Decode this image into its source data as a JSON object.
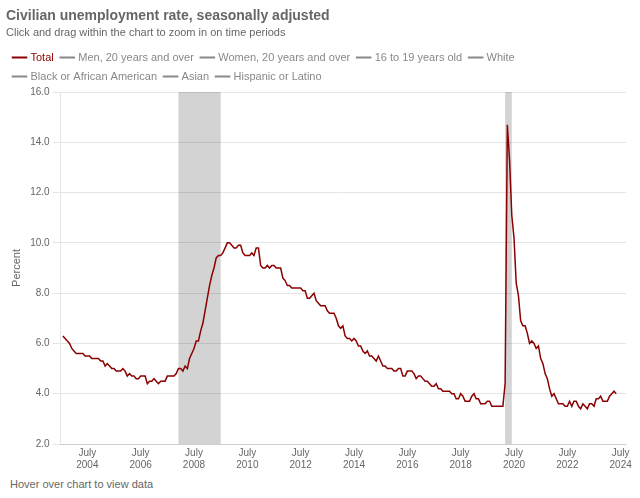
{
  "chart_data": {
    "type": "line",
    "title": "Civilian unemployment rate, seasonally adjusted",
    "subtitle": "Click and drag within the chart to zoom in on time periods",
    "footnote": "Hover over chart to view data",
    "ylabel": "Percent",
    "legend": "top",
    "grid": true,
    "xlim": [
      2003.5,
      2024.7
    ],
    "xticks": [
      {
        "value": 2004.5,
        "label": "July\n2004"
      },
      {
        "value": 2006.5,
        "label": "July\n2006"
      },
      {
        "value": 2008.5,
        "label": "July\n2008"
      },
      {
        "value": 2010.5,
        "label": "July\n2010"
      },
      {
        "value": 2012.5,
        "label": "July\n2012"
      },
      {
        "value": 2014.5,
        "label": "July\n2014"
      },
      {
        "value": 2016.5,
        "label": "July\n2016"
      },
      {
        "value": 2018.5,
        "label": "July\n2018"
      },
      {
        "value": 2020.5,
        "label": "July\n2020"
      },
      {
        "value": 2022.5,
        "label": "July\n2022"
      },
      {
        "value": 2024.5,
        "label": "July\n2024"
      }
    ],
    "ylim": [
      2.0,
      16.0
    ],
    "yticks": [
      {
        "value": 2.0,
        "label": "2.0"
      },
      {
        "value": 4.0,
        "label": "4.0"
      },
      {
        "value": 6.0,
        "label": "6.0"
      },
      {
        "value": 8.0,
        "label": "8.0"
      },
      {
        "value": 10.0,
        "label": "10.0"
      },
      {
        "value": 12.0,
        "label": "12.0"
      },
      {
        "value": 14.0,
        "label": "14.0"
      },
      {
        "value": 16.0,
        "label": "16.0"
      }
    ],
    "shaded_ranges": [
      {
        "start": 2007.917,
        "end": 2009.5,
        "color": "#d3d3d3"
      },
      {
        "start": 2020.167,
        "end": 2020.417,
        "color": "#d3d3d3"
      }
    ],
    "annotations": [
      {
        "text": "Men, 20 years and over",
        "color": "#888888"
      },
      {
        "text": "Women, 20 years and over",
        "color": "#888888"
      },
      {
        "text": "16 to 19 years old",
        "color": "#888888"
      },
      {
        "text": "White",
        "color": "#888888"
      },
      {
        "text": "Black or African American",
        "color": "#888888"
      },
      {
        "text": "Asian",
        "color": "#888888"
      },
      {
        "text": "Hispanic or Latino",
        "color": "#888888"
      }
    ],
    "x": [
      2003.583,
      2003.667,
      2003.75,
      2003.833,
      2003.917,
      2004.0,
      2004.083,
      2004.167,
      2004.25,
      2004.333,
      2004.417,
      2004.5,
      2004.583,
      2004.667,
      2004.75,
      2004.833,
      2004.917,
      2005.0,
      2005.083,
      2005.167,
      2005.25,
      2005.333,
      2005.417,
      2005.5,
      2005.583,
      2005.667,
      2005.75,
      2005.833,
      2005.917,
      2006.0,
      2006.083,
      2006.167,
      2006.25,
      2006.333,
      2006.417,
      2006.5,
      2006.583,
      2006.667,
      2006.75,
      2006.833,
      2006.917,
      2007.0,
      2007.083,
      2007.167,
      2007.25,
      2007.333,
      2007.417,
      2007.5,
      2007.583,
      2007.667,
      2007.75,
      2007.833,
      2007.917,
      2008.0,
      2008.083,
      2008.167,
      2008.25,
      2008.333,
      2008.417,
      2008.5,
      2008.583,
      2008.667,
      2008.75,
      2008.833,
      2008.917,
      2009.0,
      2009.083,
      2009.167,
      2009.25,
      2009.333,
      2009.417,
      2009.5,
      2009.583,
      2009.667,
      2009.75,
      2009.833,
      2009.917,
      2010.0,
      2010.083,
      2010.167,
      2010.25,
      2010.333,
      2010.417,
      2010.5,
      2010.583,
      2010.667,
      2010.75,
      2010.833,
      2010.917,
      2011.0,
      2011.083,
      2011.167,
      2011.25,
      2011.333,
      2011.417,
      2011.5,
      2011.583,
      2011.667,
      2011.75,
      2011.833,
      2011.917,
      2012.0,
      2012.083,
      2012.167,
      2012.25,
      2012.333,
      2012.417,
      2012.5,
      2012.583,
      2012.667,
      2012.75,
      2012.833,
      2012.917,
      2013.0,
      2013.083,
      2013.167,
      2013.25,
      2013.333,
      2013.417,
      2013.5,
      2013.583,
      2013.667,
      2013.75,
      2013.833,
      2013.917,
      2014.0,
      2014.083,
      2014.167,
      2014.25,
      2014.333,
      2014.417,
      2014.5,
      2014.583,
      2014.667,
      2014.75,
      2014.833,
      2014.917,
      2015.0,
      2015.083,
      2015.167,
      2015.25,
      2015.333,
      2015.417,
      2015.5,
      2015.583,
      2015.667,
      2015.75,
      2015.833,
      2015.917,
      2016.0,
      2016.083,
      2016.167,
      2016.25,
      2016.333,
      2016.417,
      2016.5,
      2016.583,
      2016.667,
      2016.75,
      2016.833,
      2016.917,
      2017.0,
      2017.083,
      2017.167,
      2017.25,
      2017.333,
      2017.417,
      2017.5,
      2017.583,
      2017.667,
      2017.75,
      2017.833,
      2017.917,
      2018.0,
      2018.083,
      2018.167,
      2018.25,
      2018.333,
      2018.417,
      2018.5,
      2018.583,
      2018.667,
      2018.75,
      2018.833,
      2018.917,
      2019.0,
      2019.083,
      2019.167,
      2019.25,
      2019.333,
      2019.417,
      2019.5,
      2019.583,
      2019.667,
      2019.75,
      2019.833,
      2019.917,
      2020.0,
      2020.083,
      2020.167,
      2020.25,
      2020.333,
      2020.417,
      2020.5,
      2020.583,
      2020.667,
      2020.75,
      2020.833,
      2020.917,
      2021.0,
      2021.083,
      2021.167,
      2021.25,
      2021.333,
      2021.417,
      2021.5,
      2021.583,
      2021.667,
      2021.75,
      2021.833,
      2021.917,
      2022.0,
      2022.083,
      2022.167,
      2022.25,
      2022.333,
      2022.417,
      2022.5,
      2022.583,
      2022.667,
      2022.75,
      2022.833,
      2022.917,
      2023.0,
      2023.083,
      2023.167,
      2023.25,
      2023.333,
      2023.417,
      2023.5,
      2023.583,
      2023.667,
      2023.75,
      2023.833,
      2023.917,
      2024.0,
      2024.083,
      2024.167,
      2024.25,
      2024.333
    ],
    "series": [
      {
        "name": "Total",
        "color": "#8B0000",
        "values": [
          6.3,
          6.2,
          6.1,
          6.0,
          5.8,
          5.7,
          5.6,
          5.6,
          5.6,
          5.6,
          5.5,
          5.5,
          5.5,
          5.4,
          5.4,
          5.4,
          5.4,
          5.3,
          5.3,
          5.1,
          5.2,
          5.1,
          5.0,
          5.0,
          4.9,
          4.9,
          4.9,
          5.0,
          4.9,
          4.7,
          4.8,
          4.7,
          4.7,
          4.6,
          4.6,
          4.7,
          4.7,
          4.7,
          4.4,
          4.5,
          4.5,
          4.6,
          4.5,
          4.4,
          4.5,
          4.5,
          4.5,
          4.7,
          4.7,
          4.7,
          4.7,
          4.8,
          5.0,
          5.0,
          4.9,
          5.1,
          5.0,
          5.4,
          5.6,
          5.8,
          6.1,
          6.1,
          6.5,
          6.8,
          7.3,
          7.8,
          8.3,
          8.7,
          9.0,
          9.4,
          9.5,
          9.5,
          9.6,
          9.8,
          10.0,
          10.0,
          9.9,
          9.8,
          9.8,
          9.9,
          9.9,
          9.6,
          9.5,
          9.5,
          9.5,
          9.6,
          9.5,
          9.8,
          9.8,
          9.1,
          9.0,
          9.0,
          9.1,
          9.0,
          9.1,
          9.1,
          9.0,
          9.0,
          9.0,
          8.6,
          8.5,
          8.3,
          8.3,
          8.2,
          8.2,
          8.2,
          8.2,
          8.2,
          8.1,
          8.1,
          7.8,
          7.8,
          7.9,
          8.0,
          7.7,
          7.6,
          7.5,
          7.5,
          7.5,
          7.3,
          7.2,
          7.2,
          7.2,
          7.0,
          6.7,
          6.6,
          6.7,
          6.3,
          6.2,
          6.2,
          6.1,
          6.2,
          6.1,
          5.9,
          5.9,
          5.7,
          5.6,
          5.7,
          5.5,
          5.5,
          5.4,
          5.3,
          5.5,
          5.3,
          5.1,
          5.1,
          5.0,
          5.0,
          5.0,
          4.9,
          4.9,
          5.0,
          5.0,
          4.7,
          4.7,
          4.9,
          4.9,
          4.9,
          4.8,
          4.6,
          4.7,
          4.7,
          4.6,
          4.5,
          4.5,
          4.4,
          4.3,
          4.3,
          4.4,
          4.2,
          4.2,
          4.1,
          4.1,
          4.1,
          4.1,
          4.0,
          4.0,
          3.8,
          3.8,
          4.0,
          3.9,
          3.7,
          3.7,
          3.7,
          3.9,
          4.0,
          3.8,
          3.8,
          3.6,
          3.6,
          3.6,
          3.7,
          3.7,
          3.5,
          3.5,
          3.5,
          3.5,
          3.5,
          3.5,
          4.4,
          14.7,
          13.3,
          11.1,
          10.2,
          8.4,
          7.9,
          6.9,
          6.7,
          6.7,
          6.4,
          6.0,
          6.1,
          6.0,
          5.8,
          5.9,
          5.4,
          5.2,
          4.8,
          4.6,
          4.2,
          3.9,
          4.0,
          3.8,
          3.6,
          3.6,
          3.6,
          3.5,
          3.5,
          3.7,
          3.5,
          3.7,
          3.7,
          3.5,
          3.4,
          3.6,
          3.5,
          3.4,
          3.6,
          3.6,
          3.5,
          3.8,
          3.8,
          3.9,
          3.7,
          3.7,
          3.7,
          3.9,
          4.0,
          4.1,
          4.0
        ]
      }
    ]
  }
}
